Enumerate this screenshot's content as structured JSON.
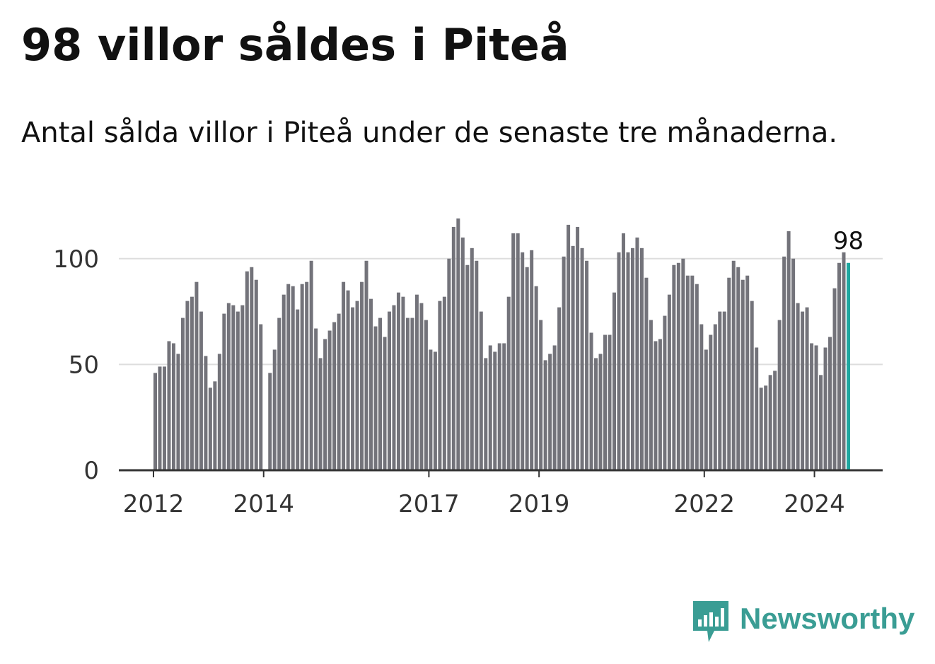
{
  "title": "98 villor såldes i Piteå",
  "subtitle": "Antal sålda villor i Piteå under de senaste tre månaderna.",
  "brand": {
    "name": "Newsworthy",
    "logo_icon": "bar-chart-speech-bubble-icon"
  },
  "colors": {
    "bar": "#73737a",
    "highlight": "#1fa7a0",
    "grid": "#dddddd",
    "axis": "#333333",
    "brand": "#3a9d94"
  },
  "chart_data": {
    "type": "bar",
    "title": "98 villor såldes i Piteå",
    "xlabel": "",
    "ylabel": "",
    "ylim": [
      0,
      127
    ],
    "yticks": [
      0,
      50,
      100
    ],
    "grid": true,
    "start": "2012-01",
    "xtick_labels": [
      {
        "label": "2012",
        "index": 0
      },
      {
        "label": "2014",
        "index": 24
      },
      {
        "label": "2017",
        "index": 60
      },
      {
        "label": "2019",
        "index": 84
      },
      {
        "label": "2022",
        "index": 120
      },
      {
        "label": "2024",
        "index": 144
      }
    ],
    "values": [
      46,
      49,
      49,
      61,
      60,
      55,
      72,
      80,
      82,
      89,
      75,
      54,
      39,
      42,
      55,
      74,
      79,
      78,
      75,
      78,
      94,
      96,
      90,
      69,
      0,
      46,
      57,
      72,
      83,
      88,
      87,
      76,
      88,
      89,
      99,
      67,
      53,
      62,
      66,
      70,
      74,
      89,
      85,
      77,
      80,
      89,
      99,
      81,
      68,
      72,
      63,
      75,
      78,
      84,
      82,
      72,
      72,
      83,
      79,
      71,
      57,
      56,
      80,
      82,
      100,
      115,
      119,
      110,
      97,
      105,
      99,
      75,
      53,
      59,
      56,
      60,
      60,
      82,
      112,
      112,
      103,
      96,
      104,
      87,
      71,
      52,
      55,
      59,
      77,
      101,
      116,
      106,
      115,
      105,
      99,
      65,
      53,
      55,
      64,
      64,
      84,
      103,
      112,
      103,
      105,
      110,
      105,
      91,
      71,
      61,
      62,
      73,
      83,
      97,
      98,
      100,
      92,
      92,
      88,
      69,
      57,
      64,
      69,
      75,
      75,
      91,
      99,
      96,
      90,
      92,
      80,
      58,
      39,
      40,
      45,
      47,
      71,
      101,
      113,
      100,
      79,
      75,
      77,
      60,
      59,
      45,
      58,
      63,
      86,
      98,
      103,
      98
    ],
    "highlight_index": 151,
    "highlight_label": "98"
  }
}
